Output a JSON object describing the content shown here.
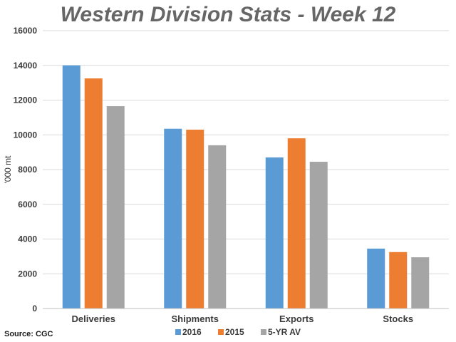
{
  "chart_data": {
    "type": "bar",
    "title": "Western Division Stats - Week 12",
    "xlabel": "",
    "ylabel": "'000 mt",
    "ylim": [
      0,
      16000
    ],
    "yticks": [
      0,
      2000,
      4000,
      6000,
      8000,
      10000,
      12000,
      14000,
      16000
    ],
    "grid": true,
    "legend_position": "bottom",
    "categories": [
      "Deliveries",
      "Shipments",
      "Exports",
      "Stocks"
    ],
    "series": [
      {
        "name": "2016",
        "color": "#5B9BD5",
        "values": [
          14000,
          10350,
          8700,
          3450
        ]
      },
      {
        "name": "2015",
        "color": "#ED7D31",
        "values": [
          13250,
          10300,
          9800,
          3250
        ]
      },
      {
        "name": "5-YR AV",
        "color": "#A5A5A5",
        "values": [
          11650,
          9400,
          8450,
          2950
        ]
      }
    ]
  },
  "source": "Source: CGC"
}
